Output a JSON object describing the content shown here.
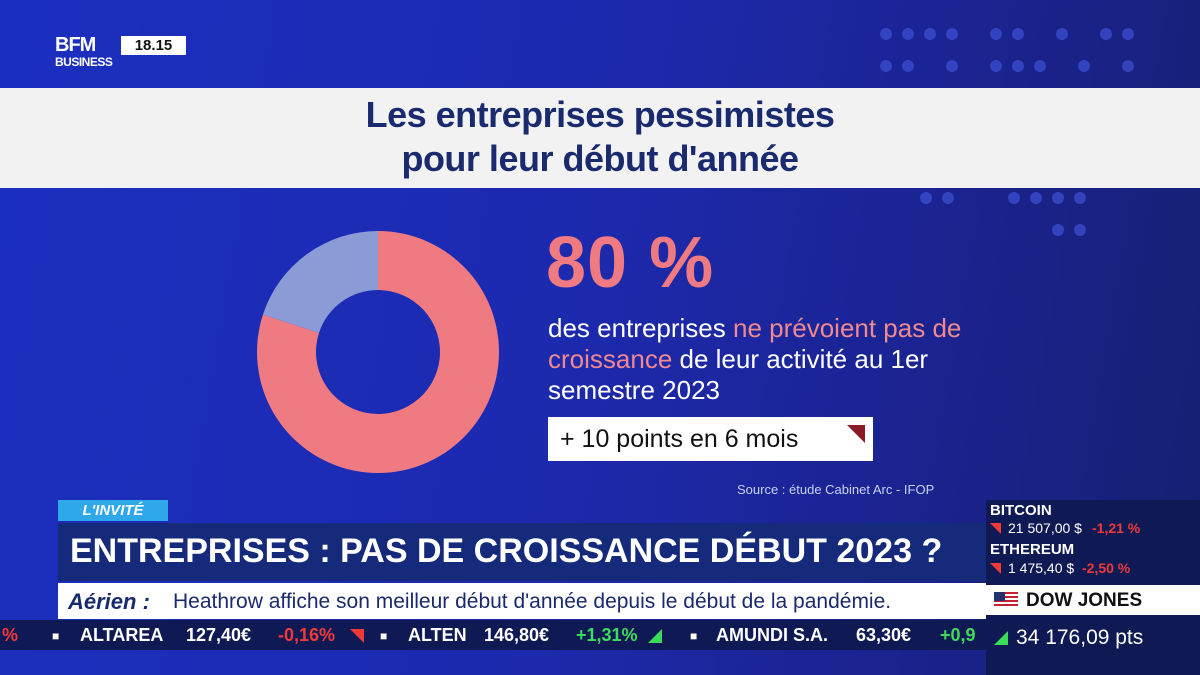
{
  "channel": {
    "logo_line1": "BFM",
    "logo_line2": "BUSINESS",
    "time": "18.15"
  },
  "title": {
    "line1": "Les entreprises pessimistes",
    "line2": "pour leur début d'année"
  },
  "chart_data": {
    "type": "pie",
    "style": "donut",
    "slices": [
      {
        "value": 80,
        "color": "#ef7a82"
      },
      {
        "value": 20,
        "color": "#8b9bd6"
      }
    ],
    "title": "",
    "xlabel": "",
    "ylabel": ""
  },
  "stat": {
    "value": "80 %",
    "desc_part1": "des entreprises ",
    "desc_highlight": "ne prévoient pas de croissance",
    "desc_part2": " de leur activité au 1er semestre 2023",
    "delta": "+ 10 points en 6 mois",
    "source": "Source : étude Cabinet Arc - IFOP"
  },
  "banner": {
    "tag": "L'INVITÉ",
    "headline": "ENTREPRISES : PAS DE CROISSANCE DÉBUT 2023 ?",
    "ticker_label": "Aérien :",
    "ticker_text": "Heathrow affiche son meilleur début d'année depuis le début de la pandémie."
  },
  "stocks": [
    {
      "name": "",
      "value": "",
      "change": "%",
      "dir": "down"
    },
    {
      "name": "ALTAREA",
      "value": "127,40€",
      "change": "-0,16%",
      "dir": "down"
    },
    {
      "name": "ALTEN",
      "value": "146,80€",
      "change": "+1,31%",
      "dir": "up"
    },
    {
      "name": "AMUNDI S.A.",
      "value": "63,30€",
      "change": "+0,9",
      "dir": "up"
    }
  ],
  "market": {
    "bitcoin": {
      "name": "BITCOIN",
      "value": "21 507,00 $",
      "change": "-1,21 %"
    },
    "ethereum": {
      "name": "ETHEREUM",
      "value": "1 475,40 $",
      "change": "-2,50 %"
    },
    "dowjones": {
      "name": "DOW JONES",
      "value": "34 176,09 pts"
    }
  },
  "colors": {
    "accent": "#ef7a82",
    "navy": "#1a2a6e",
    "up": "#3cdc5a",
    "down": "#f03a3a"
  }
}
